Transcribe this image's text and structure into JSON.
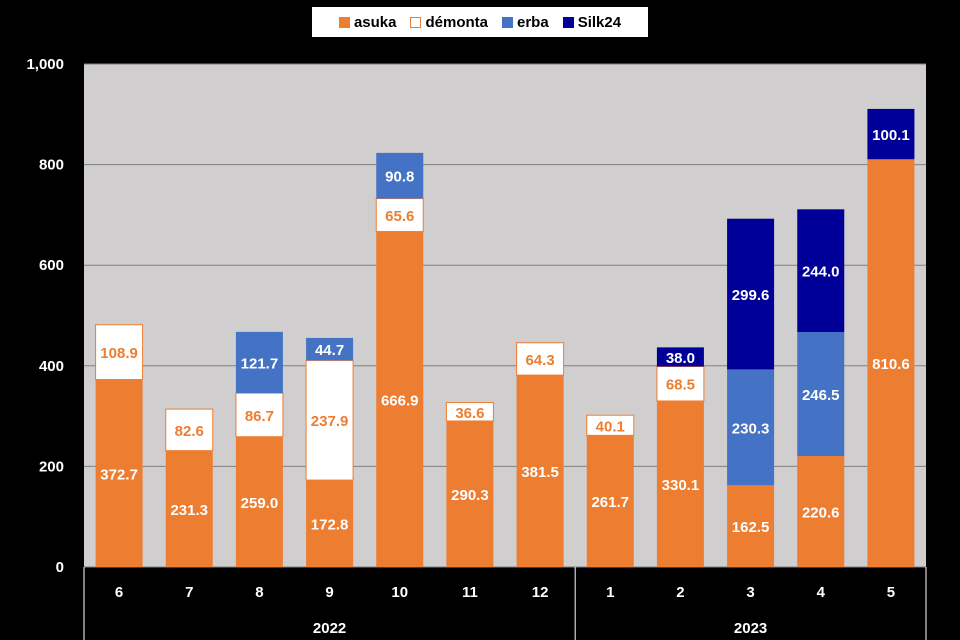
{
  "chart_data": {
    "type": "bar",
    "stacked": true,
    "title": "",
    "xlabel": "",
    "ylabel": "",
    "ylim": [
      0,
      1000
    ],
    "yticks": [
      0,
      200,
      400,
      600,
      800,
      1000
    ],
    "ytick_labels": [
      "0",
      "200",
      "400",
      "600",
      "800",
      "1,000"
    ],
    "grid": true,
    "legend_position": "top-center",
    "categories": [
      "6",
      "7",
      "8",
      "9",
      "10",
      "11",
      "12",
      "1",
      "2",
      "3",
      "4",
      "5"
    ],
    "year_groups": [
      {
        "label": "2022",
        "start": 0,
        "end": 6
      },
      {
        "label": "2023",
        "start": 7,
        "end": 11
      }
    ],
    "series": [
      {
        "name": "asuka",
        "color": "#ED7D31",
        "label_color": "#FFFFFF",
        "values": [
          372.7,
          231.3,
          259.0,
          172.8,
          666.9,
          290.3,
          381.5,
          261.7,
          330.1,
          162.5,
          220.6,
          810.6
        ]
      },
      {
        "name": "démonta",
        "color": "#FFFFFF",
        "label_color": "#ED7D31",
        "values": [
          108.9,
          82.6,
          86.7,
          237.9,
          65.6,
          36.6,
          64.3,
          40.1,
          68.5,
          null,
          null,
          null
        ]
      },
      {
        "name": "erba",
        "color": "#4472C4",
        "label_color": "#FFFFFF",
        "values": [
          null,
          null,
          121.7,
          44.7,
          90.8,
          null,
          null,
          null,
          null,
          230.3,
          246.5,
          null
        ]
      },
      {
        "name": "Silk24",
        "color": "#000099",
        "label_color": "#FFFFFF",
        "values": [
          null,
          null,
          null,
          null,
          null,
          null,
          null,
          null,
          38.0,
          299.6,
          244.0,
          100.1
        ]
      }
    ]
  }
}
